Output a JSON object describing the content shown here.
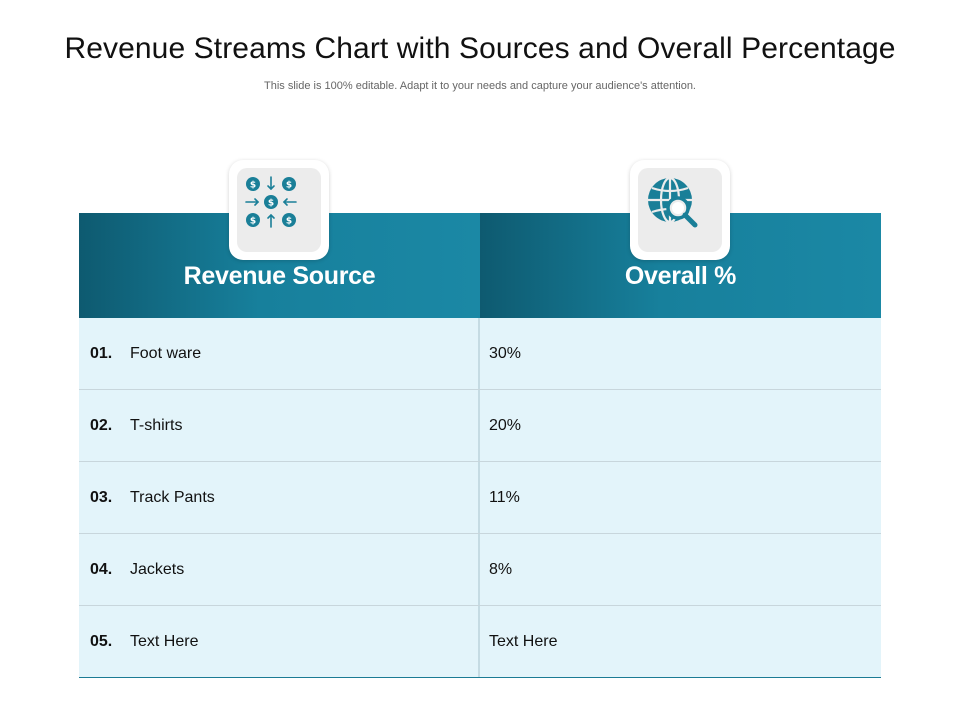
{
  "slide": {
    "title": "Revenue Streams Chart with Sources and Overall Percentage",
    "subtitle": "This slide is 100% editable. Adapt it to your needs and capture your audience's attention."
  },
  "table": {
    "headers": [
      {
        "label": "Revenue Source",
        "icon": "money-flow-icon"
      },
      {
        "label": "Overall %",
        "icon": "globe-search-icon"
      }
    ],
    "rows": [
      {
        "num": "01.",
        "source": "Foot ware",
        "percent": "30%"
      },
      {
        "num": "02.",
        "source": "T-shirts",
        "percent": "20%"
      },
      {
        "num": "03.",
        "source": "Track Pants",
        "percent": "11%"
      },
      {
        "num": "04.",
        "source": "Jackets",
        "percent": "8%"
      },
      {
        "num": "05.",
        "source": "Text Here",
        "percent": "Text Here"
      }
    ]
  },
  "colors": {
    "header_dark": "#0e5a70",
    "header_light": "#1b88a5",
    "row_bg": "#e3f4fa",
    "icon_teal": "#1a7f98"
  }
}
